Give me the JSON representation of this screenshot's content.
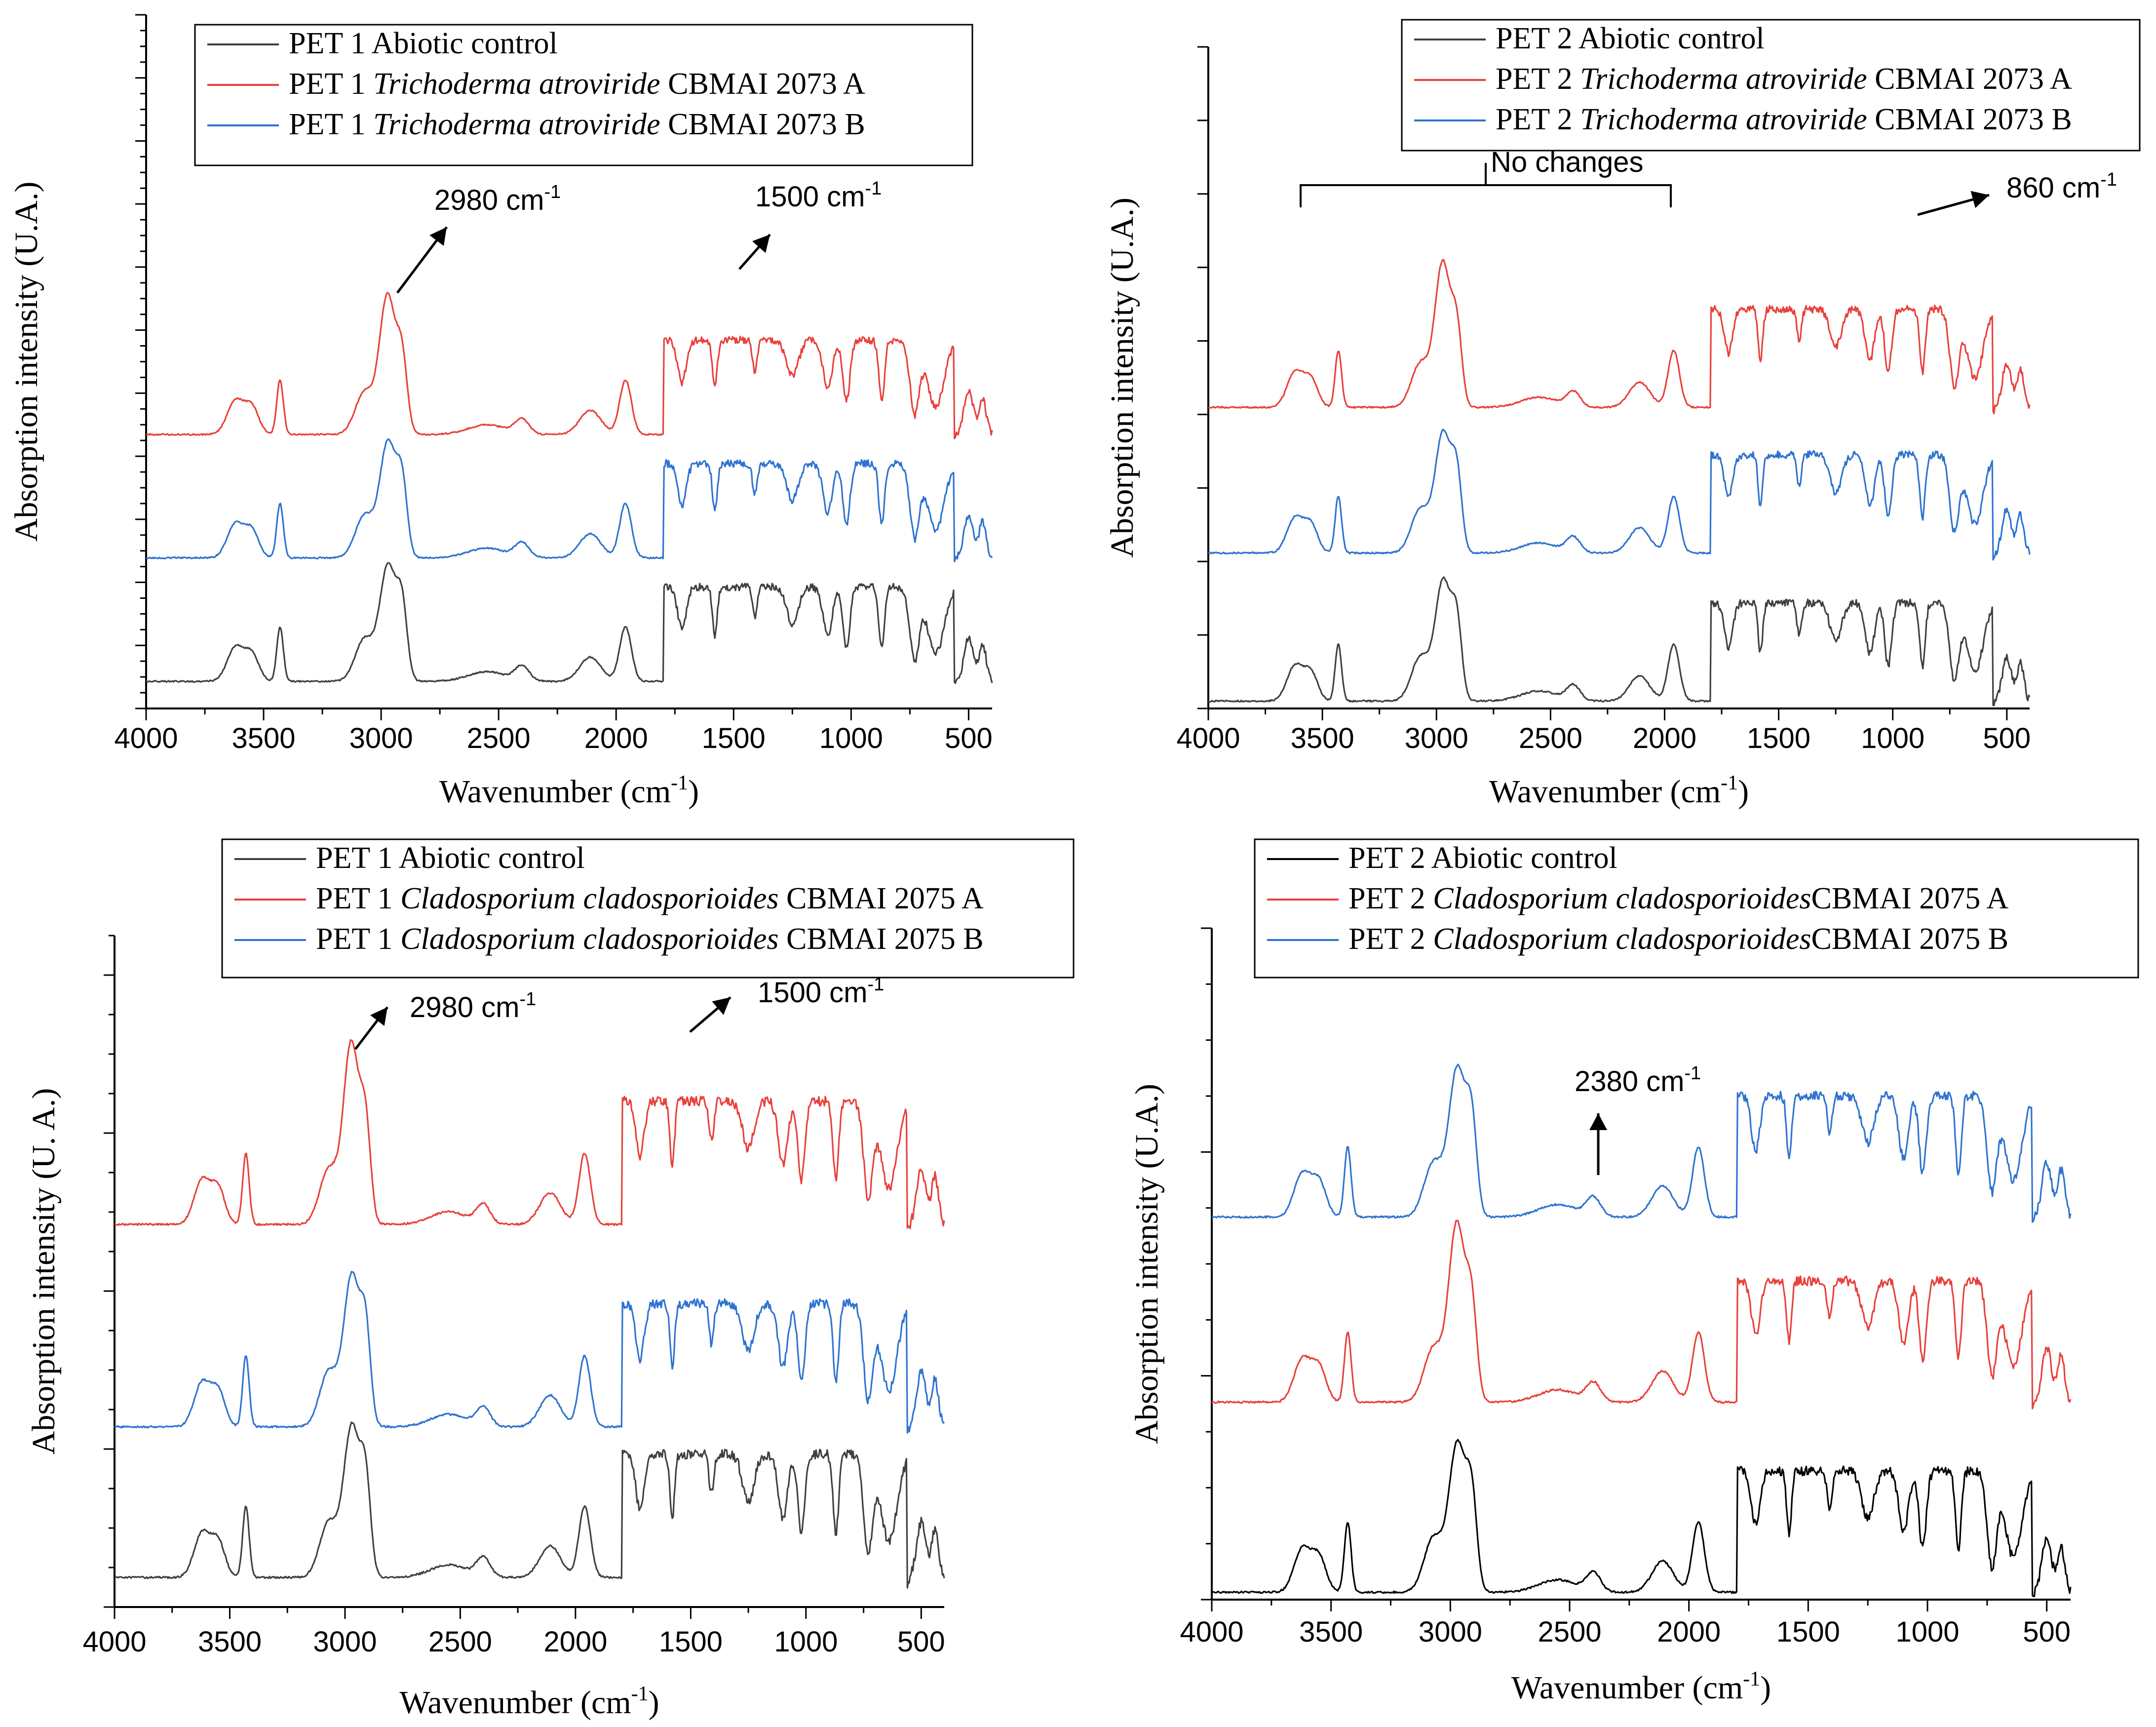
{
  "charts": [
    {
      "title": "",
      "xlabel": "Wavenumber (cm",
      "xlabel_sup": "-1",
      "xlabel_end": ")",
      "ylabel": "Absorption intensity (U.A.)",
      "xticks": [
        "4000",
        "3500",
        "3000",
        "2500",
        "2000",
        "1500",
        "1000",
        "500"
      ],
      "legend": [
        {
          "prefix": "PET 1 ",
          "italic": "",
          "suffix": "Abiotic control",
          "color": "#404040"
        },
        {
          "prefix": "PET 1 ",
          "italic": "Trichoderma atroviride",
          "suffix": " CBMAI 2073 A",
          "color": "#e8413c"
        },
        {
          "prefix": "PET 1 ",
          "italic": "Trichoderma atroviride",
          "suffix": " CBMAI 2073 B",
          "color": "#2f73d0"
        }
      ],
      "annotations": [
        {
          "text": "2980 cm",
          "sup": "-1"
        },
        {
          "text": "1500 cm",
          "sup": "-1"
        }
      ]
    },
    {
      "title": "",
      "xlabel": "Wavenumber (cm",
      "xlabel_sup": "-1",
      "xlabel_end": ")",
      "ylabel": "Absorption intensity (U.A.)",
      "xticks": [
        "4000",
        "3500",
        "3000",
        "2500",
        "2000",
        "1500",
        "1000",
        "500"
      ],
      "legend": [
        {
          "prefix": "PET 2 ",
          "italic": "",
          "suffix": "Abiotic control",
          "color": "#404040"
        },
        {
          "prefix": "PET 2 ",
          "italic": "Trichoderma atroviride",
          "suffix": " CBMAI 2073 A",
          "color": "#e8413c"
        },
        {
          "prefix": "PET 2 ",
          "italic": "Trichoderma atroviride",
          "suffix": " CBMAI 2073 B",
          "color": "#2f73d0"
        }
      ],
      "annotations": [
        {
          "text": "No changes",
          "sup": ""
        },
        {
          "text": "860 cm",
          "sup": "-1"
        }
      ]
    },
    {
      "title": "",
      "xlabel": "Wavenumber (cm",
      "xlabel_sup": "-1",
      "xlabel_end": ")",
      "ylabel": "Absorption intensity (U. A.)",
      "xticks": [
        "4000",
        "3500",
        "3000",
        "2500",
        "2000",
        "1500",
        "1000",
        "500"
      ],
      "legend": [
        {
          "prefix": "PET 1 ",
          "italic": "",
          "suffix": "Abiotic control",
          "color": "#404040"
        },
        {
          "prefix": "PET 1 ",
          "italic": "Cladosporium cladosporioides",
          "suffix": " CBMAI 2075 A",
          "color": "#e8413c"
        },
        {
          "prefix": "PET 1 ",
          "italic": "Cladosporium cladosporioides",
          "suffix": " CBMAI 2075 B",
          "color": "#2f73d0"
        }
      ],
      "annotations": [
        {
          "text": "2980 cm",
          "sup": "-1"
        },
        {
          "text": "1500 cm",
          "sup": "-1"
        }
      ]
    },
    {
      "title": "",
      "xlabel": "Wavenumber (cm",
      "xlabel_sup": "-1",
      "xlabel_end": ")",
      "ylabel": "Absorption intensity (U.A.)",
      "xticks": [
        "4000",
        "3500",
        "3000",
        "2500",
        "2000",
        "1500",
        "1000",
        "500"
      ],
      "legend": [
        {
          "prefix": "PET 2 ",
          "italic": "",
          "suffix": "Abiotic control",
          "color": "#000000"
        },
        {
          "prefix": "PET 2 ",
          "italic": "Cladosporium cladosporioides",
          "suffix": "CBMAI 2075 A",
          "color": "#e8413c"
        },
        {
          "prefix": "PET 2 ",
          "italic": "Cladosporium cladosporioides",
          "suffix": "CBMAI 2075 B",
          "color": "#2f73d0"
        }
      ],
      "annotations": [
        {
          "text": "2380 cm",
          "sup": "-1"
        }
      ]
    }
  ],
  "chart_data": [
    {
      "type": "line",
      "xlim": [
        4000,
        400
      ],
      "series": [
        {
          "name": "PET 1 Abiotic control",
          "offset": 0
        },
        {
          "name": "PET 1 Trichoderma atroviride CBMAI 2073 A",
          "offset": 2
        },
        {
          "name": "PET 1 Trichoderma atroviride CBMAI 2073 B",
          "offset": 1
        }
      ]
    },
    {
      "type": "line",
      "xlim": [
        4000,
        400
      ],
      "series": [
        {
          "name": "PET 2 Abiotic control",
          "offset": 0
        },
        {
          "name": "PET 2 Trichoderma atroviride CBMAI 2073 A",
          "offset": 2
        },
        {
          "name": "PET 2 Trichoderma atroviride CBMAI 2073 B",
          "offset": 1
        }
      ]
    },
    {
      "type": "line",
      "xlim": [
        4000,
        400
      ],
      "series": [
        {
          "name": "PET 1 Abiotic control",
          "offset": 0
        },
        {
          "name": "PET 1 Cladosporium cladosporioides CBMAI 2075 A",
          "offset": 2
        },
        {
          "name": "PET 1 Cladosporium cladosporioides CBMAI 2075 B",
          "offset": 1
        }
      ]
    },
    {
      "type": "line",
      "xlim": [
        4000,
        400
      ],
      "series": [
        {
          "name": "PET 2 Abiotic control",
          "offset": 0
        },
        {
          "name": "PET 2 Cladosporium cladosporioides CBMAI 2075 A",
          "offset": 1
        },
        {
          "name": "PET 2 Cladosporium cladosporioides CBMAI 2075 B",
          "offset": 2
        }
      ]
    }
  ]
}
